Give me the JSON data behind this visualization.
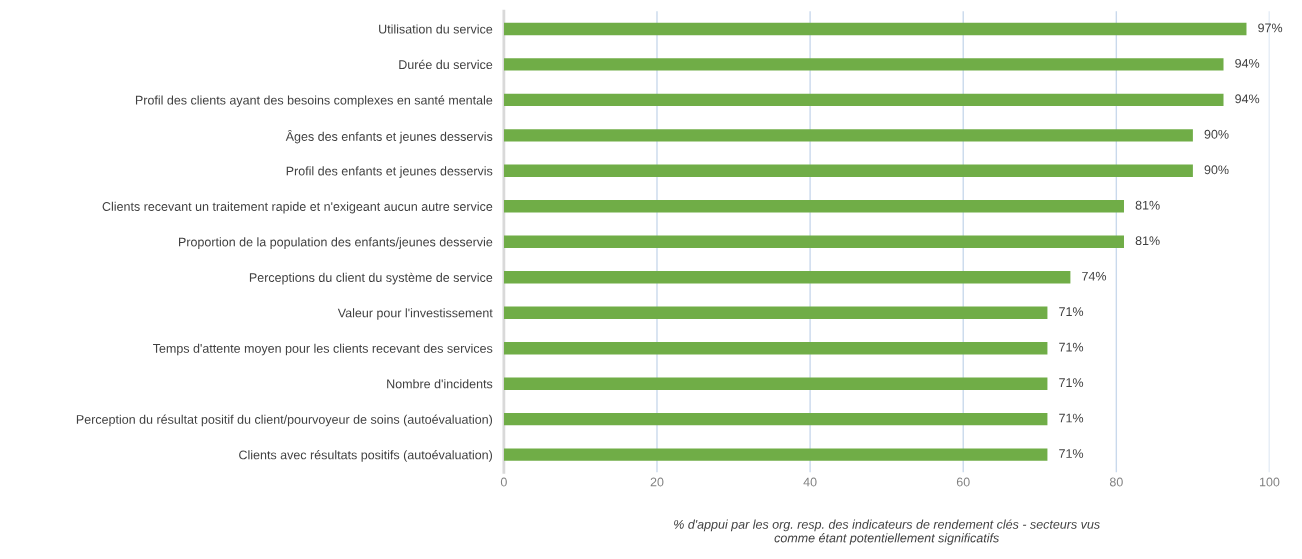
{
  "chart_data": {
    "type": "bar",
    "orientation": "horizontal",
    "xlabel": "% d'appui par les org. resp. des indicateurs de rendement clés - secteurs vus\ncomme étant potentiellement significatifs",
    "categories": [
      "Utilisation du service",
      "Durée du service",
      "Profil des clients ayant des besoins complexes en santé mentale",
      "Âges des enfants et jeunes desservis",
      "Profil des enfants et jeunes desservis",
      "Clients recevant un traitement rapide et n'exigeant aucun autre service",
      "Proportion de la population des enfants/jeunes desservie",
      "Perceptions du client du système de service",
      "Valeur pour l'investissement",
      "Temps d'attente moyen pour les clients recevant des services",
      "Nombre d'incidents",
      "Perception du résultat positif du client/pourvoyeur de soins (autoévaluation)",
      "Clients avec résultats positifs (autoévaluation)"
    ],
    "values": [
      97,
      94,
      94,
      90,
      90,
      81,
      81,
      74,
      71,
      71,
      71,
      71,
      71
    ],
    "value_labels": [
      "97%",
      "94%",
      "94%",
      "90%",
      "90%",
      "81%",
      "81%",
      "74%",
      "71%",
      "71%",
      "71%",
      "71%",
      "71%"
    ],
    "color": "#70ad47",
    "xlim": [
      0,
      100
    ],
    "xticks": [
      0,
      20,
      40,
      60,
      80,
      100
    ],
    "grid": "x",
    "legend": false
  }
}
